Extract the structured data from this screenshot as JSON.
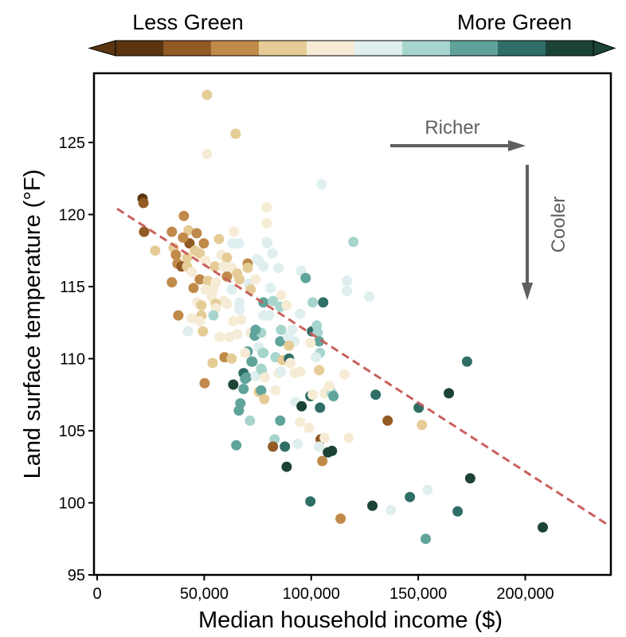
{
  "chart_data": {
    "type": "scatter",
    "xlabel": "Median household income ($)",
    "ylabel": "Land surface temperature (°F)",
    "xlim": [
      -1500,
      240000
    ],
    "ylim": [
      95,
      129.8
    ],
    "xticks": [
      0,
      50000,
      100000,
      150000,
      200000
    ],
    "xtick_labels": [
      "0",
      "50,000",
      "100,000",
      "150,000",
      "200,000"
    ],
    "yticks": [
      95,
      100,
      105,
      110,
      115,
      120,
      125
    ],
    "ytick_labels": [
      "95",
      "100",
      "105",
      "110",
      "115",
      "120",
      "125"
    ],
    "grid": false,
    "colorbar": {
      "label_left": "Less Green",
      "label_right": "More Green",
      "position": "top",
      "extend": "both",
      "colors": [
        "#5a3510",
        "#925a24",
        "#c08a4a",
        "#e5cc96",
        "#f6ecd6",
        "#dfeeee",
        "#a6d5cd",
        "#60a39a",
        "#2e6e66",
        "#1b4336"
      ]
    },
    "trend_line": {
      "style": "dashed",
      "color": "#c9605d",
      "points": [
        [
          9300,
          120.4
        ],
        [
          239400,
          98.4
        ]
      ]
    },
    "annotations": [
      {
        "text": "Richer",
        "arrow": "right"
      },
      {
        "text": "Cooler",
        "arrow": "down"
      }
    ],
    "annotation_color": "#5f5f5f",
    "point_fields": [
      "income",
      "temperature",
      "greenness_class"
    ],
    "points": [
      [
        51300,
        128.3,
        3
      ],
      [
        64700,
        125.6,
        3
      ],
      [
        51300,
        124.2,
        4
      ],
      [
        21200,
        121.1,
        0
      ],
      [
        21600,
        120.8,
        1
      ],
      [
        40500,
        119.9,
        2
      ],
      [
        21900,
        118.8,
        1
      ],
      [
        34900,
        118.8,
        2
      ],
      [
        42700,
        118.9,
        3
      ],
      [
        46500,
        118.7,
        2
      ],
      [
        56900,
        118.3,
        3
      ],
      [
        63900,
        118.8,
        4
      ],
      [
        79200,
        120.5,
        4
      ],
      [
        79200,
        119.4,
        4
      ],
      [
        79200,
        118.1,
        5
      ],
      [
        43100,
        118.0,
        1
      ],
      [
        49800,
        118.0,
        2
      ],
      [
        104800,
        122.1,
        5
      ],
      [
        40100,
        118.4,
        2
      ],
      [
        63200,
        118.0,
        5
      ],
      [
        66200,
        118.0,
        5
      ],
      [
        27100,
        117.5,
        3
      ],
      [
        35700,
        117.7,
        3
      ],
      [
        45700,
        117.5,
        3
      ],
      [
        47900,
        117.3,
        3
      ],
      [
        36800,
        117.2,
        2
      ],
      [
        42000,
        117.0,
        3
      ],
      [
        58000,
        117.2,
        4
      ],
      [
        60600,
        117.0,
        3
      ],
      [
        37500,
        116.6,
        2
      ],
      [
        39400,
        116.4,
        1
      ],
      [
        42000,
        116.4,
        3
      ],
      [
        50600,
        116.8,
        4
      ],
      [
        55000,
        116.4,
        3
      ],
      [
        59100,
        116.4,
        4
      ],
      [
        62800,
        116.3,
        4
      ],
      [
        70300,
        116.6,
        2
      ],
      [
        70300,
        116.3,
        3
      ],
      [
        75500,
        116.8,
        5
      ],
      [
        77700,
        116.4,
        5
      ],
      [
        44200,
        116.0,
        4
      ],
      [
        65400,
        115.9,
        3
      ],
      [
        60600,
        115.7,
        2
      ],
      [
        34900,
        115.3,
        2
      ],
      [
        47900,
        115.5,
        2
      ],
      [
        51700,
        115.4,
        3
      ],
      [
        55400,
        115.3,
        4
      ],
      [
        66500,
        115.5,
        3
      ],
      [
        71000,
        115.2,
        5
      ],
      [
        74000,
        115.5,
        4
      ],
      [
        45000,
        114.9,
        2
      ],
      [
        50600,
        114.8,
        4
      ],
      [
        54300,
        114.8,
        4
      ],
      [
        62800,
        114.8,
        5
      ],
      [
        71700,
        114.8,
        3
      ],
      [
        53500,
        114.3,
        4
      ],
      [
        59100,
        114.0,
        4
      ],
      [
        46800,
        113.9,
        4
      ],
      [
        48700,
        113.7,
        3
      ],
      [
        55400,
        113.8,
        3
      ],
      [
        60600,
        113.8,
        4
      ],
      [
        66500,
        113.9,
        5
      ],
      [
        77700,
        113.9,
        7
      ],
      [
        55400,
        113.5,
        4
      ],
      [
        66500,
        113.4,
        5
      ],
      [
        37900,
        113.0,
        2
      ],
      [
        44200,
        112.8,
        4
      ],
      [
        48700,
        113.0,
        3
      ],
      [
        54300,
        113.0,
        6
      ],
      [
        47900,
        112.6,
        4
      ],
      [
        63600,
        112.6,
        4
      ],
      [
        67300,
        112.7,
        4
      ],
      [
        77700,
        113.0,
        5
      ],
      [
        42400,
        111.9,
        5
      ],
      [
        49400,
        111.9,
        3
      ],
      [
        57200,
        111.5,
        4
      ],
      [
        61700,
        111.5,
        4
      ],
      [
        65400,
        111.7,
        4
      ],
      [
        71700,
        111.8,
        4
      ],
      [
        73600,
        111.6,
        7
      ],
      [
        76600,
        111.8,
        6
      ],
      [
        70300,
        110.5,
        7
      ],
      [
        77700,
        110.4,
        6
      ],
      [
        75500,
        110.8,
        5
      ],
      [
        59500,
        110.1,
        2
      ],
      [
        53900,
        109.7,
        3
      ],
      [
        62800,
        110.0,
        3
      ],
      [
        72100,
        109.8,
        7
      ],
      [
        76600,
        109.3,
        6
      ],
      [
        68400,
        109.0,
        8
      ],
      [
        69900,
        108.7,
        7
      ],
      [
        74000,
        108.8,
        5
      ],
      [
        50200,
        108.3,
        2
      ],
      [
        63600,
        108.2,
        9
      ],
      [
        68400,
        107.9,
        7
      ],
      [
        75500,
        107.7,
        3
      ],
      [
        76600,
        107.8,
        7
      ],
      [
        69100,
        110.4,
        4
      ],
      [
        72500,
        109.8,
        7
      ],
      [
        77300,
        110.4,
        6
      ],
      [
        83300,
        110.1,
        6
      ],
      [
        86600,
        109.9,
        3
      ],
      [
        89600,
        110.0,
        8
      ],
      [
        90300,
        109.7,
        4
      ],
      [
        104100,
        110.4,
        6
      ],
      [
        102200,
        110.1,
        5
      ],
      [
        69100,
        108.6,
        7
      ],
      [
        76900,
        109.2,
        6
      ],
      [
        78400,
        108.7,
        4
      ],
      [
        78100,
        107.2,
        3
      ],
      [
        84700,
        109.0,
        4
      ],
      [
        85900,
        109.1,
        5
      ],
      [
        92200,
        109.0,
        4
      ],
      [
        94800,
        109.1,
        4
      ],
      [
        103700,
        109.2,
        3
      ],
      [
        83300,
        107.8,
        4
      ],
      [
        66900,
        106.9,
        7
      ],
      [
        66200,
        106.4,
        7
      ],
      [
        71400,
        105.7,
        6
      ],
      [
        85500,
        105.7,
        7
      ],
      [
        92600,
        107.0,
        5
      ],
      [
        95500,
        106.7,
        9
      ],
      [
        99600,
        107.4,
        8
      ],
      [
        104100,
        106.6,
        8
      ],
      [
        108500,
        108.0,
        2
      ],
      [
        106300,
        107.6,
        4
      ],
      [
        109700,
        107.6,
        6
      ],
      [
        110400,
        107.4,
        7
      ],
      [
        94800,
        105.6,
        4
      ],
      [
        98900,
        105.2,
        4
      ],
      [
        82900,
        104.4,
        6
      ],
      [
        82100,
        103.9,
        1
      ],
      [
        87700,
        103.9,
        8
      ],
      [
        93700,
        104.1,
        5
      ],
      [
        104400,
        104.4,
        1
      ],
      [
        106300,
        104.5,
        4
      ],
      [
        103700,
        103.9,
        5
      ],
      [
        117500,
        104.5,
        4
      ],
      [
        109700,
        103.6,
        9
      ],
      [
        107800,
        103.5,
        9
      ],
      [
        105200,
        102.9,
        2
      ],
      [
        65000,
        104.0,
        7
      ],
      [
        88500,
        102.5,
        9
      ],
      [
        99600,
        100.1,
        8
      ],
      [
        113700,
        98.9,
        2
      ],
      [
        79500,
        118.0,
        5
      ],
      [
        81800,
        117.3,
        5
      ],
      [
        74700,
        116.9,
        5
      ],
      [
        84700,
        116.3,
        5
      ],
      [
        95200,
        116.1,
        5
      ],
      [
        97400,
        115.6,
        7
      ],
      [
        116700,
        115.4,
        5
      ],
      [
        116700,
        114.7,
        5
      ],
      [
        127100,
        114.3,
        5
      ],
      [
        119700,
        118.1,
        6
      ],
      [
        81000,
        114.9,
        5
      ],
      [
        85900,
        114.4,
        4
      ],
      [
        82100,
        114.0,
        6
      ],
      [
        85500,
        113.6,
        6
      ],
      [
        88500,
        113.7,
        4
      ],
      [
        100700,
        113.9,
        6
      ],
      [
        105600,
        113.9,
        8
      ],
      [
        94800,
        113.1,
        5
      ],
      [
        80300,
        113.0,
        5
      ],
      [
        74000,
        112.0,
        7
      ],
      [
        85900,
        112.0,
        6
      ],
      [
        91100,
        112.0,
        5
      ],
      [
        85500,
        111.2,
        7
      ],
      [
        89200,
        111.5,
        5
      ],
      [
        92200,
        111.2,
        5
      ],
      [
        100400,
        111.9,
        8
      ],
      [
        102600,
        112.3,
        6
      ],
      [
        103000,
        111.8,
        6
      ],
      [
        103700,
        111.2,
        7
      ],
      [
        89600,
        110.9,
        3
      ],
      [
        99600,
        111.1,
        4
      ],
      [
        115600,
        108.9,
        4
      ],
      [
        130100,
        107.5,
        8
      ],
      [
        108500,
        108.1,
        4
      ],
      [
        100700,
        107.5,
        4
      ],
      [
        172800,
        109.8,
        8
      ],
      [
        164300,
        107.6,
        9
      ],
      [
        150200,
        106.6,
        8
      ],
      [
        135700,
        105.7,
        1
      ],
      [
        151700,
        105.4,
        3
      ],
      [
        174300,
        101.7,
        9
      ],
      [
        154300,
        100.9,
        5
      ],
      [
        146100,
        100.4,
        8
      ],
      [
        128600,
        99.8,
        9
      ],
      [
        137200,
        99.5,
        5
      ],
      [
        168400,
        99.4,
        8
      ],
      [
        153500,
        97.5,
        7
      ],
      [
        208200,
        98.3,
        9
      ]
    ]
  }
}
